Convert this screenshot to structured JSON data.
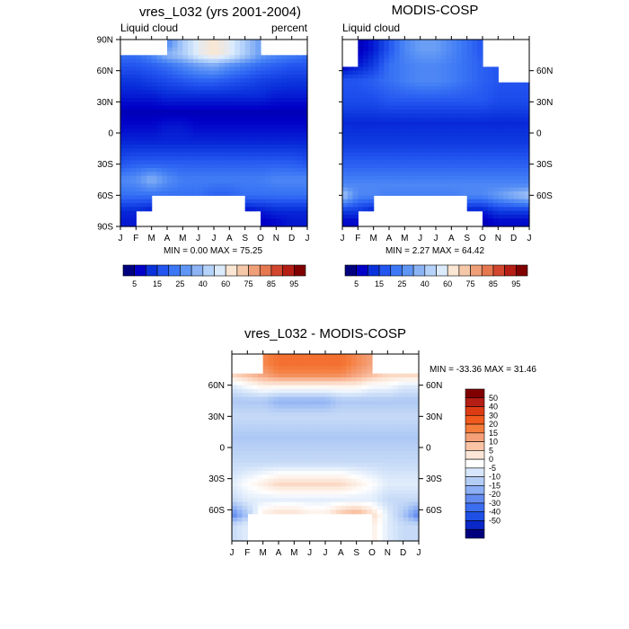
{
  "chart_data": [
    {
      "type": "heatmap",
      "title": "vres_L032 (yrs 2001-2004)",
      "left_label": "Liquid cloud",
      "right_label": "percent",
      "x_ticks": [
        "J",
        "F",
        "M",
        "A",
        "M",
        "J",
        "J",
        "A",
        "S",
        "O",
        "N",
        "D",
        "J"
      ],
      "y_ticks": [
        "90N",
        "60N",
        "30N",
        "0",
        "30S",
        "60S",
        "90S"
      ],
      "stats": "MIN =   0.00 MAX =  75.25",
      "min": 0.0,
      "max": 75.25,
      "zonal_profile": [
        {
          "lat": 85,
          "values": [
            null,
            null,
            null,
            30,
            45,
            55,
            60,
            55,
            45,
            35,
            null,
            null,
            null
          ]
        },
        {
          "lat": 75,
          "values": [
            25,
            25,
            30,
            40,
            45,
            55,
            60,
            55,
            45,
            35,
            30,
            28,
            25
          ]
        },
        {
          "lat": 65,
          "values": [
            20,
            20,
            22,
            25,
            30,
            35,
            38,
            32,
            28,
            24,
            22,
            20,
            20
          ]
        },
        {
          "lat": 50,
          "values": [
            14,
            14,
            16,
            18,
            20,
            22,
            22,
            20,
            18,
            16,
            15,
            14,
            14
          ]
        },
        {
          "lat": 35,
          "values": [
            10,
            10,
            10,
            12,
            12,
            12,
            12,
            12,
            12,
            12,
            10,
            10,
            10
          ]
        },
        {
          "lat": 20,
          "values": [
            5,
            5,
            5,
            5,
            5,
            5,
            5,
            5,
            5,
            5,
            5,
            5,
            5
          ]
        },
        {
          "lat": 5,
          "values": [
            8,
            8,
            8,
            10,
            10,
            8,
            8,
            8,
            8,
            8,
            8,
            8,
            8
          ]
        },
        {
          "lat": -10,
          "values": [
            12,
            12,
            12,
            12,
            12,
            12,
            12,
            12,
            12,
            12,
            12,
            12,
            12
          ]
        },
        {
          "lat": -30,
          "values": [
            20,
            22,
            22,
            22,
            22,
            22,
            22,
            22,
            22,
            22,
            22,
            22,
            20
          ]
        },
        {
          "lat": -45,
          "values": [
            30,
            32,
            40,
            32,
            28,
            28,
            28,
            28,
            28,
            28,
            30,
            30,
            30
          ]
        },
        {
          "lat": -60,
          "values": [
            25,
            25,
            25,
            25,
            25,
            25,
            22,
            22,
            25,
            25,
            25,
            25,
            25
          ]
        },
        {
          "lat": -75,
          "values": [
            12,
            12,
            10,
            null,
            null,
            null,
            null,
            null,
            8,
            10,
            12,
            12,
            12
          ]
        },
        {
          "lat": -85,
          "values": [
            10,
            10,
            null,
            null,
            null,
            null,
            null,
            null,
            null,
            6,
            8,
            10,
            10
          ]
        }
      ]
    },
    {
      "type": "heatmap",
      "title": "MODIS-COSP",
      "left_label": "Liquid cloud",
      "right_label": "",
      "x_ticks": [
        "J",
        "F",
        "M",
        "A",
        "M",
        "J",
        "J",
        "A",
        "S",
        "O",
        "N",
        "D",
        "J"
      ],
      "y_ticks": [
        "60N",
        "30N",
        "0",
        "30S",
        "60S"
      ],
      "stats": "MIN =   2.27 MAX =  64.42",
      "min": 2.27,
      "max": 64.42,
      "zonal_profile": [
        {
          "lat": 80,
          "values": [
            null,
            5,
            10,
            20,
            30,
            35,
            35,
            30,
            25,
            20,
            null,
            null,
            null
          ]
        },
        {
          "lat": 65,
          "values": [
            5,
            10,
            15,
            25,
            28,
            30,
            30,
            28,
            25,
            22,
            20,
            null,
            null
          ]
        },
        {
          "lat": 50,
          "values": [
            20,
            20,
            22,
            25,
            28,
            30,
            30,
            28,
            25,
            22,
            20,
            20,
            20
          ]
        },
        {
          "lat": 30,
          "values": [
            18,
            18,
            18,
            20,
            20,
            20,
            20,
            20,
            20,
            20,
            18,
            18,
            18
          ]
        },
        {
          "lat": 10,
          "values": [
            12,
            12,
            12,
            12,
            12,
            12,
            12,
            12,
            12,
            12,
            12,
            12,
            12
          ]
        },
        {
          "lat": -10,
          "values": [
            15,
            15,
            15,
            15,
            15,
            15,
            15,
            15,
            15,
            15,
            15,
            15,
            15
          ]
        },
        {
          "lat": -30,
          "values": [
            22,
            22,
            22,
            22,
            22,
            22,
            22,
            22,
            22,
            22,
            22,
            22,
            22
          ]
        },
        {
          "lat": -50,
          "values": [
            30,
            30,
            30,
            30,
            30,
            30,
            30,
            30,
            30,
            30,
            30,
            30,
            30
          ]
        },
        {
          "lat": -60,
          "values": [
            45,
            30,
            30,
            28,
            28,
            28,
            28,
            28,
            30,
            30,
            35,
            40,
            45
          ]
        },
        {
          "lat": -75,
          "values": [
            15,
            15,
            10,
            null,
            null,
            null,
            null,
            null,
            10,
            10,
            15,
            15,
            15
          ]
        },
        {
          "lat": -85,
          "values": [
            8,
            8,
            null,
            null,
            null,
            null,
            null,
            null,
            null,
            5,
            8,
            8,
            8
          ]
        }
      ]
    },
    {
      "type": "heatmap",
      "title": "vres_L032 - MODIS-COSP",
      "x_ticks": [
        "J",
        "F",
        "M",
        "A",
        "M",
        "J",
        "J",
        "A",
        "S",
        "O",
        "N",
        "D",
        "J"
      ],
      "y_ticks": [
        "60N",
        "30N",
        "0",
        "30S",
        "60S"
      ],
      "stats": "MIN = -33.36 MAX =  31.46",
      "min": -33.36,
      "max": 31.46,
      "zonal_profile": [
        {
          "lat": 80,
          "values": [
            null,
            null,
            25,
            30,
            30,
            30,
            30,
            30,
            25,
            20,
            null,
            null,
            null
          ]
        },
        {
          "lat": 70,
          "values": [
            10,
            15,
            20,
            25,
            25,
            25,
            25,
            25,
            20,
            15,
            10,
            10,
            10
          ]
        },
        {
          "lat": 60,
          "values": [
            -5,
            0,
            5,
            5,
            5,
            5,
            5,
            5,
            5,
            0,
            0,
            -5,
            -5
          ]
        },
        {
          "lat": 45,
          "values": [
            -15,
            -15,
            -15,
            -20,
            -20,
            -20,
            -20,
            -15,
            -15,
            -15,
            -15,
            -15,
            -15
          ]
        },
        {
          "lat": 30,
          "values": [
            -10,
            -10,
            -10,
            -10,
            -10,
            -10,
            -10,
            -10,
            -10,
            -10,
            -10,
            -10,
            -10
          ]
        },
        {
          "lat": 10,
          "values": [
            -15,
            -15,
            -15,
            -15,
            -15,
            -15,
            -15,
            -15,
            -15,
            -15,
            -15,
            -15,
            -15
          ]
        },
        {
          "lat": -15,
          "values": [
            -10,
            -10,
            -10,
            -10,
            -10,
            -10,
            -10,
            -10,
            -10,
            -10,
            -10,
            -10,
            -10
          ]
        },
        {
          "lat": -35,
          "values": [
            -5,
            0,
            5,
            10,
            10,
            10,
            10,
            10,
            5,
            0,
            -5,
            -5,
            -5
          ]
        },
        {
          "lat": -50,
          "values": [
            -10,
            -5,
            -5,
            -5,
            -5,
            -5,
            -5,
            -5,
            -5,
            -5,
            -10,
            -10,
            -10
          ]
        },
        {
          "lat": -65,
          "values": [
            -30,
            -15,
            5,
            10,
            10,
            5,
            5,
            15,
            20,
            10,
            -5,
            -15,
            -30
          ]
        },
        {
          "lat": -75,
          "values": [
            -10,
            -5,
            null,
            null,
            null,
            null,
            null,
            null,
            null,
            5,
            -5,
            -10,
            -10
          ]
        }
      ]
    }
  ],
  "colorbars": {
    "abs_labels": [
      "5",
      "15",
      "25",
      "40",
      "60",
      "75",
      "85",
      "95"
    ],
    "abs_colors": [
      "#00007f",
      "#0000c8",
      "#0a32dc",
      "#2355f0",
      "#3c78f5",
      "#5f96f5",
      "#8cb4f5",
      "#b4d2fa",
      "#dcebfc",
      "#fae6d2",
      "#f5c8aa",
      "#f0a078",
      "#e67850",
      "#d2462d",
      "#b41e14",
      "#800000"
    ],
    "diff_labels": [
      "50",
      "40",
      "30",
      "20",
      "15",
      "10",
      "5",
      "0",
      "-5",
      "-10",
      "-15",
      "-20",
      "-30",
      "-40",
      "-50"
    ],
    "diff_colors": [
      "#800000",
      "#b41e14",
      "#dc3c14",
      "#f05a1e",
      "#f57d3c",
      "#f5a078",
      "#fac3a5",
      "#fce6d7",
      "#ffffff",
      "#d7e6fa",
      "#b4cdf5",
      "#8caff5",
      "#648cf0",
      "#3c6ef0",
      "#1e50e6",
      "#0a28c8",
      "#00007f"
    ]
  }
}
